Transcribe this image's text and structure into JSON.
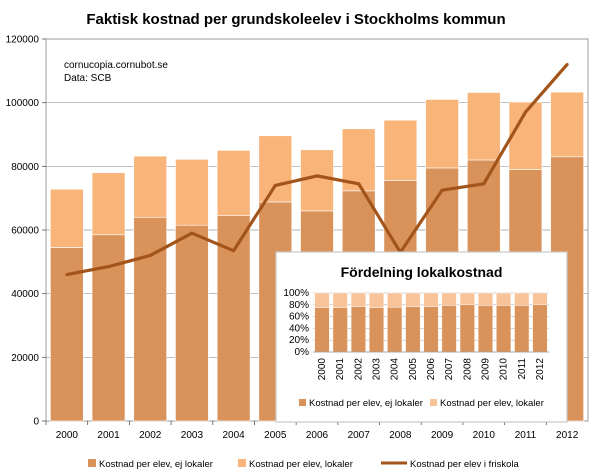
{
  "chart_data": [
    {
      "type": "bar",
      "title": "Faktisk kostnad per grundskoleelev i Stockholms kommun",
      "note_lines": [
        "cornucopia.cornubot.se",
        "Data: SCB"
      ],
      "categories": [
        "2000",
        "2001",
        "2002",
        "2003",
        "2004",
        "2005",
        "2006",
        "2007",
        "2008",
        "2009",
        "2010",
        "2011",
        "2012"
      ],
      "ylim": [
        0,
        120000
      ],
      "yticks": [
        0,
        20000,
        40000,
        60000,
        80000,
        100000,
        120000
      ],
      "grid": true,
      "stacked": true,
      "legend_position": "bottom",
      "series": [
        {
          "name": "Kostnad per elev, ej lokaler",
          "type": "bar",
          "color": "#d9925a",
          "values": [
            54500,
            58500,
            64000,
            61500,
            64500,
            68800,
            66000,
            72300,
            75500,
            79500,
            82000,
            79000,
            83000
          ]
        },
        {
          "name": "Kostnad per elev, lokaler",
          "type": "bar",
          "color": "#f9b47a",
          "values": [
            18300,
            19500,
            19200,
            20700,
            20500,
            20800,
            19200,
            19500,
            19000,
            21500,
            21200,
            21200,
            20300
          ]
        },
        {
          "name": "Kostnad per elev i friskola",
          "type": "line",
          "color": "#a3541a",
          "values": [
            46000,
            48500,
            52000,
            59000,
            53500,
            74000,
            77000,
            74500,
            53000,
            72500,
            74500,
            97000,
            112000
          ]
        }
      ]
    },
    {
      "type": "bar",
      "title": "Fördelning lokalkostnad",
      "categories": [
        "2000",
        "2001",
        "2002",
        "2003",
        "2004",
        "2005",
        "2006",
        "2007",
        "2008",
        "2009",
        "2010",
        "2011",
        "2012"
      ],
      "ylim": [
        0,
        100
      ],
      "yticks": [
        "0%",
        "20%",
        "40%",
        "60%",
        "80%",
        "100%"
      ],
      "stacked": true,
      "percent": true,
      "legend_position": "bottom",
      "series": [
        {
          "name": "Kostnad per elev, ej lokaler",
          "color": "#d9925a",
          "values": [
            75,
            75,
            77,
            75,
            76,
            77,
            77,
            79,
            80,
            79,
            79,
            79,
            80
          ]
        },
        {
          "name": "Kostnad per elev, lokaler",
          "color": "#f9c39a",
          "values": [
            25,
            25,
            23,
            25,
            24,
            23,
            23,
            21,
            20,
            21,
            21,
            21,
            20
          ]
        }
      ]
    }
  ]
}
